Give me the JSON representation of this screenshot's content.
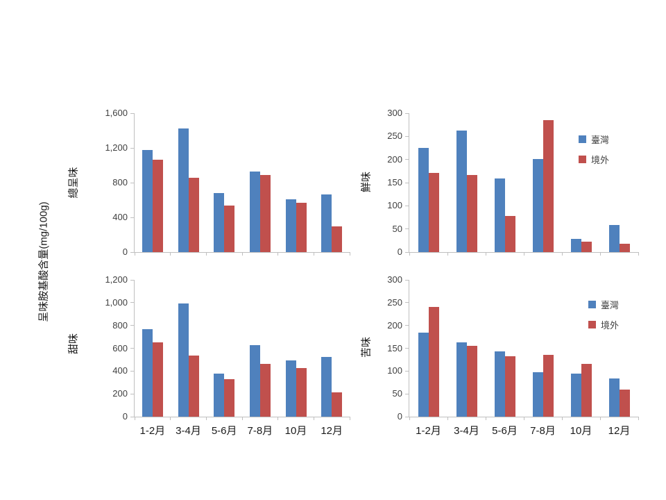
{
  "figure": {
    "y_axis_title": "呈味胺基酸含量(mg/100g)",
    "categories": [
      "1-2月",
      "3-4月",
      "5-6月",
      "7-8月",
      "10月",
      "12月"
    ],
    "legend_labels": [
      "臺灣",
      "境外"
    ],
    "colors": {
      "taiwan": "#4f81bd",
      "overseas": "#c0504d",
      "axis": "#bfbfbf",
      "text": "#3f3f3f"
    }
  },
  "chart_data": [
    {
      "type": "bar",
      "title": "總呈味",
      "position": "top-left",
      "categories": [
        "1-2月",
        "3-4月",
        "5-6月",
        "7-8月",
        "10月",
        "12月"
      ],
      "series": [
        {
          "name": "臺灣",
          "id": "taiwan",
          "color": "#4f81bd",
          "values": [
            1180,
            1425,
            680,
            930,
            612,
            668
          ]
        },
        {
          "name": "境外",
          "id": "overseas",
          "color": "#c0504d",
          "values": [
            1063,
            855,
            540,
            890,
            568,
            293
          ]
        }
      ],
      "ylim": [
        0,
        1600
      ],
      "ytick_step": 400,
      "grid": false,
      "legend_position": "none",
      "show_x_tick_labels": false
    },
    {
      "type": "bar",
      "title": "鮮味",
      "position": "top-right",
      "categories": [
        "1-2月",
        "3-4月",
        "5-6月",
        "7-8月",
        "10月",
        "12月"
      ],
      "series": [
        {
          "name": "臺灣",
          "id": "taiwan",
          "color": "#4f81bd",
          "values": [
            225,
            262,
            159,
            201,
            28,
            58
          ]
        },
        {
          "name": "境外",
          "id": "overseas",
          "color": "#c0504d",
          "values": [
            171,
            167,
            78,
            285,
            22,
            18
          ]
        }
      ],
      "ylim": [
        0,
        300
      ],
      "ytick_step": 50,
      "grid": false,
      "legend_position": "inside-top-right",
      "show_x_tick_labels": false
    },
    {
      "type": "bar",
      "title": "甜味",
      "position": "bottom-left",
      "categories": [
        "1-2月",
        "3-4月",
        "5-6月",
        "7-8月",
        "10月",
        "12月"
      ],
      "series": [
        {
          "name": "臺灣",
          "id": "taiwan",
          "color": "#4f81bd",
          "values": [
            768,
            994,
            378,
            630,
            492,
            523
          ]
        },
        {
          "name": "境外",
          "id": "overseas",
          "color": "#c0504d",
          "values": [
            650,
            534,
            326,
            465,
            425,
            212
          ]
        }
      ],
      "ylim": [
        0,
        1200
      ],
      "ytick_step": 200,
      "grid": false,
      "legend_position": "none",
      "show_x_tick_labels": true
    },
    {
      "type": "bar",
      "title": "苦味",
      "position": "bottom-right",
      "categories": [
        "1-2月",
        "3-4月",
        "5-6月",
        "7-8月",
        "10月",
        "12月"
      ],
      "series": [
        {
          "name": "臺灣",
          "id": "taiwan",
          "color": "#4f81bd",
          "values": [
            184,
            163,
            143,
            98,
            94,
            84
          ]
        },
        {
          "name": "境外",
          "id": "overseas",
          "color": "#c0504d",
          "values": [
            241,
            155,
            132,
            135,
            115,
            59
          ]
        }
      ],
      "ylim": [
        0,
        300
      ],
      "ytick_step": 50,
      "grid": false,
      "legend_position": "inside-top-right",
      "show_x_tick_labels": true
    }
  ]
}
